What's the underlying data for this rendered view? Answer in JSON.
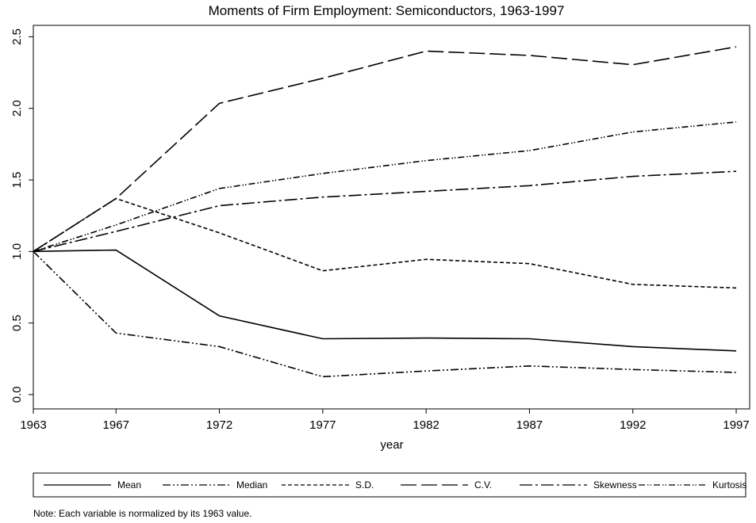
{
  "chart_data": {
    "type": "line",
    "title": "Moments of Firm Employment: Semiconductors, 1963-1997",
    "x_label": "year",
    "note": "Note: Each variable is normalized by its 1963 value.",
    "x": [
      1963,
      1967,
      1972,
      1977,
      1982,
      1987,
      1992,
      1997
    ],
    "xlim": [
      1963,
      1997.65
    ],
    "xticks": [
      1963,
      1967,
      1972,
      1977,
      1982,
      1987,
      1992,
      1997
    ],
    "ylim": [
      -0.1,
      2.58
    ],
    "yticks": [
      {
        "value": 0,
        "label": "0.0"
      },
      0.5,
      {
        "value": 1,
        "label": "1.0"
      },
      1.5,
      {
        "value": 2,
        "label": "2.0"
      },
      2.5
    ],
    "series": [
      {
        "name": "Mean",
        "color": "#000000",
        "dash": "none",
        "values": [
          1.0,
          1.01,
          0.55,
          0.39,
          0.395,
          0.39,
          0.335,
          0.305
        ]
      },
      {
        "name": "Median",
        "color": "#000000",
        "dash": "10 3 2 3 2 3",
        "values": [
          1.0,
          0.43,
          0.335,
          0.125,
          0.165,
          0.2,
          0.175,
          0.155
        ]
      },
      {
        "name": "S.D.",
        "color": "#000000",
        "dash": "5 3",
        "values": [
          1.0,
          1.37,
          1.13,
          0.865,
          0.945,
          0.915,
          0.77,
          0.745
        ]
      },
      {
        "name": "C.V.",
        "color": "#000000",
        "dash": "20 6",
        "values": [
          1.0,
          1.37,
          2.035,
          2.21,
          2.4,
          2.37,
          2.305,
          2.43
        ]
      },
      {
        "name": "Skewness",
        "color": "#000000",
        "dash": "16 4 3 4",
        "values": [
          1.0,
          1.14,
          1.32,
          1.38,
          1.42,
          1.46,
          1.525,
          1.56
        ]
      },
      {
        "name": "Kurtosis",
        "color": "#000000",
        "dash": "8 3 1.5 2 1.5 3",
        "values": [
          1.0,
          1.185,
          1.44,
          1.545,
          1.635,
          1.705,
          1.835,
          1.905
        ]
      }
    ]
  }
}
